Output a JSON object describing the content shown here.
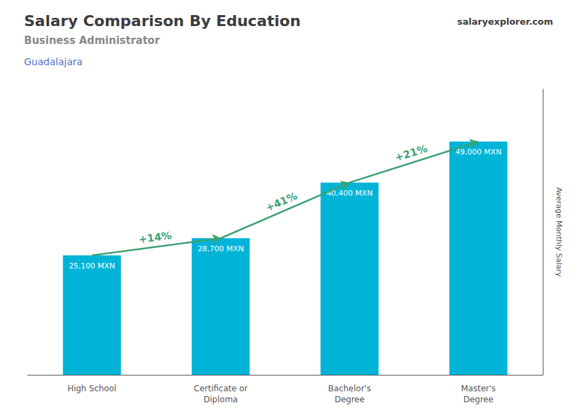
{
  "chart_data": {
    "type": "bar",
    "title": "Salary Comparison By Education",
    "subtitle": "Business Administrator",
    "ylabel": "Average Monthly Salary",
    "annotations": [
      {
        "text": "Guadalajara"
      },
      {
        "text": "salary"
      },
      {
        "text": "explorer.com"
      },
      {
        "text": "+14%",
        "from": "High School",
        "to": "Certificate or\nDiploma"
      },
      {
        "text": "+41%",
        "from": "Certificate or\nDiploma",
        "to": "Bachelor's\nDegree"
      },
      {
        "text": "+21%",
        "from": "Bachelor's\nDegree",
        "to": "Master's\nDegree"
      }
    ],
    "categories": [
      "High School",
      "Certificate or\nDiploma",
      "Bachelor's\nDegree",
      "Master's\nDegree"
    ],
    "values": [
      25100,
      28700,
      40400,
      49000
    ],
    "value_labels": [
      "25,100 MXN",
      "28,700 MXN",
      "40,400 MXN",
      "49,000 MXN"
    ],
    "data_labels": true,
    "color": "#00b4d8",
    "ylim": [
      0,
      60000
    ],
    "yticks": [],
    "tick_labels": "x",
    "grid": false
  }
}
